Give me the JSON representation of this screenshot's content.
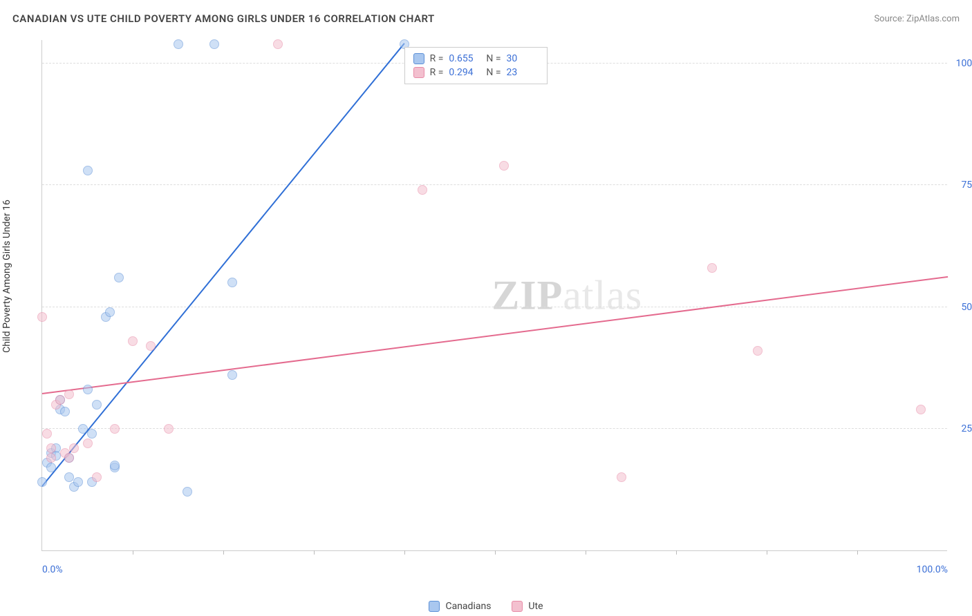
{
  "title": "CANADIAN VS UTE CHILD POVERTY AMONG GIRLS UNDER 16 CORRELATION CHART",
  "source_label": "Source:",
  "source_name": "ZipAtlas.com",
  "watermark": {
    "bold": "ZIP",
    "rest": "atlas"
  },
  "chart": {
    "type": "scatter",
    "y_axis_title": "Child Poverty Among Girls Under 16",
    "xlim": [
      0,
      100
    ],
    "ylim": [
      0,
      105
    ],
    "xlabels": [
      {
        "v": 0,
        "t": "0.0%"
      },
      {
        "v": 100,
        "t": "100.0%"
      }
    ],
    "xticks": [
      10,
      20,
      30,
      40,
      50,
      60,
      70,
      80,
      90
    ],
    "ylabels": [
      {
        "v": 25,
        "t": "25.0%"
      },
      {
        "v": 50,
        "t": "50.0%"
      },
      {
        "v": 75,
        "t": "75.0%"
      },
      {
        "v": 100,
        "t": "100.0%"
      }
    ],
    "grid_color": "#dddddd",
    "background_color": "#ffffff",
    "marker_radius": 7,
    "marker_opacity": 0.55,
    "series": {
      "canadians": {
        "label": "Canadians",
        "fill": "#a9c7ef",
        "stroke": "#5b8fd6",
        "line_color": "#2f6fd6",
        "R": "0.655",
        "N": "30",
        "trend": {
          "x1": 0,
          "y1": 13,
          "x2": 40,
          "y2": 104
        },
        "points": [
          [
            0,
            14
          ],
          [
            0.5,
            18
          ],
          [
            1,
            20
          ],
          [
            1,
            17
          ],
          [
            1.5,
            21
          ],
          [
            1.5,
            19.5
          ],
          [
            2,
            29
          ],
          [
            2,
            31
          ],
          [
            2.5,
            28.5
          ],
          [
            3,
            15
          ],
          [
            3,
            19
          ],
          [
            3.5,
            13
          ],
          [
            4,
            14
          ],
          [
            4.5,
            25
          ],
          [
            5,
            33
          ],
          [
            5.5,
            24
          ],
          [
            5.5,
            14
          ],
          [
            6,
            30
          ],
          [
            7,
            48
          ],
          [
            7.5,
            49
          ],
          [
            8,
            17
          ],
          [
            8,
            17.5
          ],
          [
            8.5,
            56
          ],
          [
            5,
            78
          ],
          [
            15,
            104
          ],
          [
            19,
            104
          ],
          [
            16,
            12
          ],
          [
            21,
            55
          ],
          [
            21,
            36
          ],
          [
            40,
            104
          ]
        ]
      },
      "ute": {
        "label": "Ute",
        "fill": "#f3c0cf",
        "stroke": "#e88aa6",
        "line_color": "#e46a8e",
        "R": "0.294",
        "N": "23",
        "trend": {
          "x1": 0,
          "y1": 32,
          "x2": 100,
          "y2": 56
        },
        "points": [
          [
            0,
            48
          ],
          [
            0.5,
            24
          ],
          [
            1,
            21
          ],
          [
            1,
            19
          ],
          [
            1.5,
            30
          ],
          [
            2,
            31
          ],
          [
            2.5,
            20
          ],
          [
            3,
            19
          ],
          [
            3.5,
            21
          ],
          [
            5,
            22
          ],
          [
            6,
            15
          ],
          [
            8,
            25
          ],
          [
            10,
            43
          ],
          [
            12,
            42
          ],
          [
            14,
            25
          ],
          [
            26,
            104
          ],
          [
            42,
            74
          ],
          [
            51,
            79
          ],
          [
            64,
            15
          ],
          [
            74,
            58
          ],
          [
            79,
            41
          ],
          [
            97,
            29
          ],
          [
            3,
            32
          ]
        ]
      }
    },
    "bottom_legend": [
      {
        "key": "canadians"
      },
      {
        "key": "ute"
      }
    ]
  },
  "stats_box_left_pct": 40
}
